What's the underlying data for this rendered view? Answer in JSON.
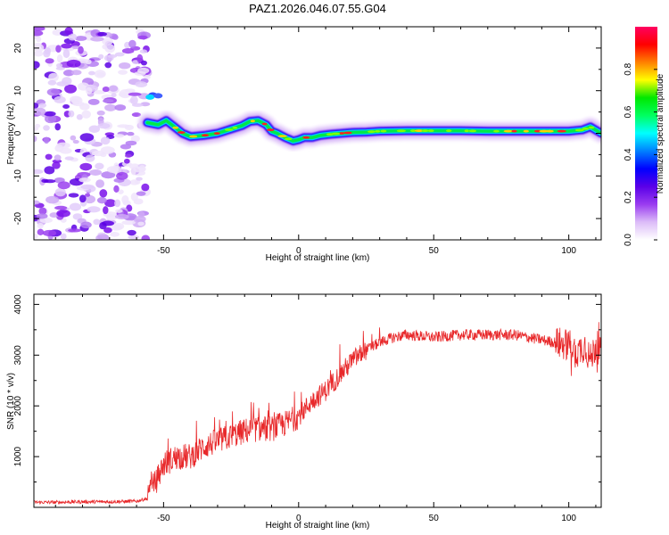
{
  "figure_title": "PAZ1.2026.046.07.55.G04",
  "chart_data": [
    {
      "type": "heatmap",
      "title": "PAZ1.2026.046.07.55.G04",
      "xlabel": "Height of straight line (km)",
      "ylabel": "Frequency (Hz)",
      "xlim": [
        -98,
        112
      ],
      "ylim": [
        -25,
        25
      ],
      "xticks": [
        -50,
        0,
        50,
        100
      ],
      "xtick_labels": [
        "-50",
        "0",
        "50",
        "100"
      ],
      "yticks": [
        -20,
        -10,
        0,
        10,
        20
      ],
      "ytick_labels": [
        "-20",
        "-10",
        "0",
        "10",
        "20"
      ],
      "ridge": {
        "x": [
          -56,
          -52,
          -49,
          -46,
          -43,
          -40,
          -35,
          -30,
          -25,
          -21,
          -18,
          -15,
          -12,
          -10,
          -8,
          -5,
          -2,
          0,
          2,
          5,
          8,
          12,
          16,
          20,
          25,
          30,
          40,
          50,
          60,
          70,
          80,
          90,
          100,
          105,
          108,
          112
        ],
        "frequency": [
          2.5,
          2.0,
          3.0,
          1.5,
          0,
          -0.8,
          -0.5,
          0,
          1.0,
          1.8,
          2.8,
          3.0,
          2.0,
          0.5,
          0,
          -1.0,
          -1.8,
          -1.5,
          -1.0,
          -1.0,
          -0.5,
          -0.2,
          0,
          0.2,
          0.3,
          0.5,
          0.6,
          0.6,
          0.6,
          0.5,
          0.5,
          0.5,
          0.5,
          0.8,
          1.5,
          0
        ]
      },
      "noise_region_x": [
        -98,
        -56
      ],
      "colorbar": {
        "label": "Normalized spectral amplitude",
        "range": [
          0,
          1
        ],
        "ticks": [
          0.0,
          0.2,
          0.4,
          0.6,
          0.8
        ],
        "tick_labels": [
          "0.0",
          "0.2",
          "0.4",
          "0.6",
          "0.8"
        ],
        "colors": [
          "#ffffff",
          "#dcbcf8",
          "#9a3cf0",
          "#5a00e8",
          "#0000ff",
          "#0080ff",
          "#00ffff",
          "#00ff60",
          "#00e800",
          "#ffff00",
          "#ff8000",
          "#ff0000",
          "#ff0060"
        ]
      }
    },
    {
      "type": "line",
      "xlabel": "Height of straight line (km)",
      "ylabel": "SNR (10 * v/v)",
      "xlim": [
        -98,
        112
      ],
      "ylim": [
        0,
        4200
      ],
      "xticks": [
        -50,
        0,
        50,
        100
      ],
      "xtick_labels": [
        "-50",
        "0",
        "50",
        "100"
      ],
      "yticks": [
        1000,
        2000,
        3000,
        4000
      ],
      "ytick_labels": [
        "1000",
        "2000",
        "3000",
        "4000"
      ],
      "series": [
        {
          "name": "SNR",
          "color": "#e8282a",
          "x": [
            -98,
            -90,
            -80,
            -70,
            -60,
            -56,
            -52,
            -50,
            -45,
            -40,
            -35,
            -30,
            -25,
            -20,
            -15,
            -10,
            -5,
            0,
            5,
            10,
            15,
            20,
            25,
            30,
            35,
            40,
            50,
            60,
            70,
            80,
            90,
            95,
            100,
            103,
            106,
            108,
            110,
            112
          ],
          "values": [
            100,
            100,
            110,
            110,
            120,
            180,
            600,
            850,
            1000,
            1000,
            1200,
            1300,
            1400,
            1500,
            1550,
            1550,
            1650,
            1800,
            2100,
            2300,
            2600,
            2900,
            3100,
            3250,
            3350,
            3400,
            3350,
            3400,
            3400,
            3400,
            3300,
            3250,
            3200,
            3050,
            3200,
            2900,
            3200,
            3050
          ]
        }
      ]
    }
  ]
}
